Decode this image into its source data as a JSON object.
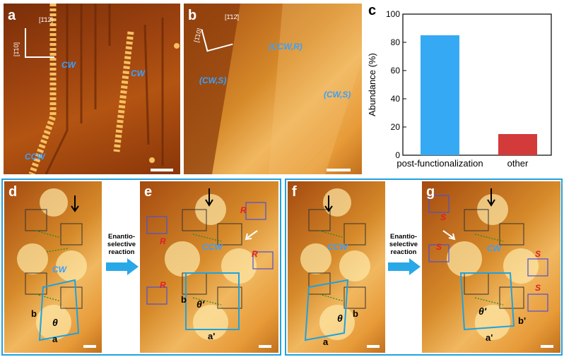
{
  "panel_a": {
    "label": "a",
    "dir1": "[1̄12̄]",
    "dir2": "[1̄10]",
    "mol1": "CW",
    "mol2": "CW",
    "mol3": "CCW"
  },
  "panel_b": {
    "label": "b",
    "dir1": "[1̄12̄]",
    "dir2": "[1̄10]",
    "dom1": "(CW,S)",
    "dom2": "(CCW,R)",
    "dom3": "(CW,S)"
  },
  "panel_c": {
    "label": "c"
  },
  "panel_d": {
    "label": "d",
    "chirality": "CW",
    "theta": "θ",
    "lat_a": "a",
    "lat_b": "b"
  },
  "panel_e": {
    "label": "e",
    "chirality": "CCW",
    "theta": "θ'",
    "lat_a": "a'",
    "lat_b": "b",
    "r1": "R",
    "r2": "R",
    "r3": "R",
    "r4": "R"
  },
  "panel_f": {
    "label": "f",
    "chirality": "CCW",
    "theta": "θ",
    "lat_a": "a",
    "lat_b": "b"
  },
  "panel_g": {
    "label": "g",
    "chirality": "CW",
    "theta": "θ'",
    "lat_a": "a'",
    "lat_b": "b'",
    "s1": "S",
    "s2": "S",
    "s3": "S",
    "s4": "S"
  },
  "reaction_label_1": "Enantio-\nselective\nreaction",
  "reaction_label_2": "Enantio-\nselective\nreaction",
  "chart_data": {
    "type": "bar",
    "categories": [
      "post-functionalization",
      "other"
    ],
    "values": [
      85,
      15
    ],
    "colors": [
      "#36a9f4",
      "#d33a3a"
    ],
    "ylabel": "Abundance (%)",
    "xlabel": "",
    "ylim": [
      0,
      100
    ],
    "yticks": [
      0,
      20,
      40,
      60,
      80,
      100
    ]
  },
  "colors": {
    "frame": "#1ea2e0",
    "molecule_label": "#3aa0ff"
  }
}
